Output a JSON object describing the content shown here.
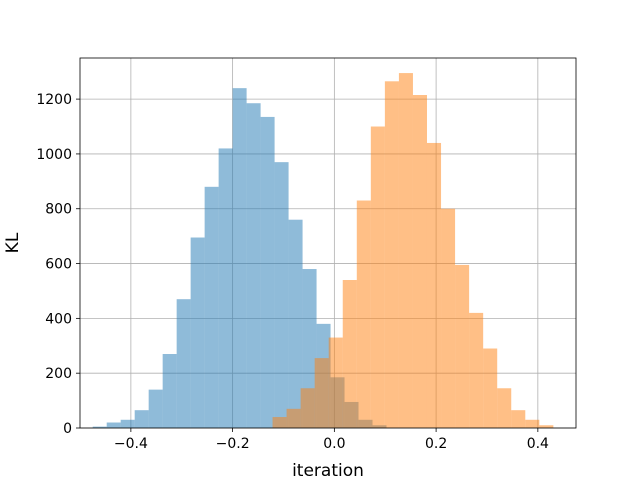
{
  "chart_data": {
    "type": "histogram",
    "title": "",
    "xlabel": "iteration",
    "ylabel": "KL",
    "xlim": [
      -0.5,
      0.475
    ],
    "ylim": [
      0,
      1350
    ],
    "grid": true,
    "x_ticks": [
      -0.4,
      -0.2,
      0.0,
      0.2,
      0.4
    ],
    "x_tick_labels": [
      "−0.4",
      "−0.2",
      "0.0",
      "0.2",
      "0.4"
    ],
    "y_ticks": [
      0,
      200,
      400,
      600,
      800,
      1000,
      1200
    ],
    "y_tick_labels": [
      "0",
      "200",
      "400",
      "600",
      "800",
      "1000",
      "1200"
    ],
    "series": [
      {
        "color": "#1f77b4",
        "alpha": 0.5,
        "bin_edges": [
          -0.475,
          -0.4475,
          -0.42,
          -0.3925,
          -0.365,
          -0.3375,
          -0.31,
          -0.2825,
          -0.255,
          -0.2275,
          -0.2,
          -0.1725,
          -0.145,
          -0.1175,
          -0.09,
          -0.0625,
          -0.035,
          -0.0075,
          0.02,
          0.0475,
          0.075,
          0.1025
        ],
        "values": [
          5,
          20,
          30,
          65,
          140,
          270,
          470,
          695,
          880,
          1020,
          1240,
          1185,
          1135,
          970,
          760,
          580,
          380,
          185,
          95,
          30,
          10
        ]
      },
      {
        "color": "#ff7f0e",
        "alpha": 0.5,
        "bin_edges": [
          -0.1215,
          -0.0939,
          -0.0663,
          -0.0387,
          -0.0111,
          0.0165,
          0.0441,
          0.0717,
          0.0993,
          0.1269,
          0.1545,
          0.1821,
          0.2097,
          0.2373,
          0.2649,
          0.2925,
          0.3201,
          0.3477,
          0.3753,
          0.4029,
          0.4305
        ],
        "values": [
          40,
          70,
          145,
          255,
          330,
          540,
          830,
          1100,
          1265,
          1295,
          1215,
          1040,
          800,
          595,
          420,
          290,
          145,
          65,
          30,
          10
        ]
      }
    ]
  }
}
